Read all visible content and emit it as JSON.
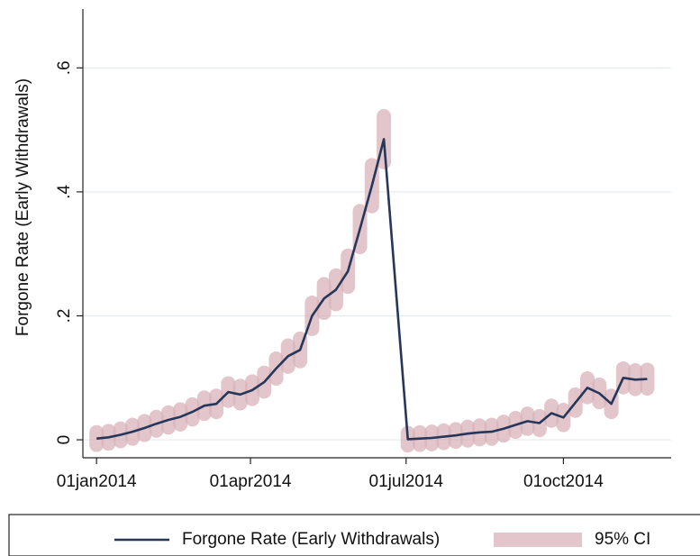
{
  "chart_data": {
    "type": "line",
    "y_label": "Forgone Rate (Early Withdrawals)",
    "x": [
      "2014-01-01",
      "2014-01-08",
      "2014-01-15",
      "2014-01-22",
      "2014-01-29",
      "2014-02-05",
      "2014-02-12",
      "2014-02-19",
      "2014-02-26",
      "2014-03-05",
      "2014-03-12",
      "2014-03-19",
      "2014-03-26",
      "2014-04-02",
      "2014-04-09",
      "2014-04-16",
      "2014-04-23",
      "2014-04-30",
      "2014-05-07",
      "2014-05-14",
      "2014-05-21",
      "2014-05-28",
      "2014-06-04",
      "2014-06-11",
      "2014-06-18",
      "2014-07-02",
      "2014-07-09",
      "2014-07-16",
      "2014-07-23",
      "2014-07-30",
      "2014-08-06",
      "2014-08-13",
      "2014-08-20",
      "2014-08-27",
      "2014-09-03",
      "2014-09-10",
      "2014-09-17",
      "2014-09-24",
      "2014-10-01",
      "2014-10-08",
      "2014-10-15",
      "2014-10-22",
      "2014-10-29",
      "2014-11-05",
      "2014-11-12",
      "2014-11-19"
    ],
    "series": [
      {
        "name": "Forgone Rate (Early Withdrawals)",
        "color": "#26375a",
        "values": [
          0.002,
          0.004,
          0.008,
          0.013,
          0.019,
          0.026,
          0.032,
          0.037,
          0.045,
          0.055,
          0.058,
          0.077,
          0.073,
          0.08,
          0.093,
          0.115,
          0.135,
          0.145,
          0.2,
          0.228,
          0.242,
          0.272,
          0.34,
          0.41,
          0.485,
          0.001,
          0.002,
          0.003,
          0.005,
          0.007,
          0.01,
          0.012,
          0.013,
          0.018,
          0.024,
          0.03,
          0.027,
          0.043,
          0.036,
          0.06,
          0.084,
          0.075,
          0.058,
          0.1,
          0.097,
          0.098
        ]
      },
      {
        "name": "95% CI",
        "color": "#d9b3ba",
        "lower": [
          -0.008,
          -0.006,
          -0.002,
          0.002,
          0.008,
          0.015,
          0.02,
          0.025,
          0.033,
          0.042,
          0.045,
          0.063,
          0.059,
          0.066,
          0.078,
          0.099,
          0.118,
          0.127,
          0.179,
          0.205,
          0.219,
          0.247,
          0.311,
          0.377,
          0.448,
          -0.009,
          -0.008,
          -0.007,
          -0.005,
          -0.003,
          -0.001,
          0.001,
          0.002,
          0.007,
          0.013,
          0.018,
          0.016,
          0.031,
          0.024,
          0.047,
          0.069,
          0.061,
          0.045,
          0.085,
          0.082,
          0.083
        ],
        "upper": [
          0.012,
          0.014,
          0.018,
          0.024,
          0.03,
          0.037,
          0.044,
          0.049,
          0.057,
          0.068,
          0.071,
          0.091,
          0.087,
          0.094,
          0.108,
          0.131,
          0.152,
          0.163,
          0.221,
          0.251,
          0.265,
          0.297,
          0.369,
          0.443,
          0.522,
          0.011,
          0.012,
          0.013,
          0.015,
          0.017,
          0.021,
          0.023,
          0.024,
          0.029,
          0.035,
          0.042,
          0.038,
          0.055,
          0.048,
          0.073,
          0.099,
          0.089,
          0.071,
          0.115,
          0.112,
          0.113
        ]
      }
    ],
    "xlim": [
      "2013-12-24",
      "2014-12-03"
    ],
    "xticks": [
      {
        "value": "2014-01-01",
        "label": "01jan2014"
      },
      {
        "value": "2014-04-01",
        "label": "01apr2014"
      },
      {
        "value": "2014-07-01",
        "label": "01jul2014"
      },
      {
        "value": "2014-10-01",
        "label": "01oct2014"
      }
    ],
    "ylim": [
      -0.029,
      0.695
    ],
    "yticks": [
      0,
      {
        "value": 0.2,
        "label": ".2"
      },
      {
        "value": 0.4,
        "label": ".4"
      },
      {
        "value": 0.6,
        "label": ".6"
      }
    ],
    "grid": true,
    "legend": "bottom"
  }
}
